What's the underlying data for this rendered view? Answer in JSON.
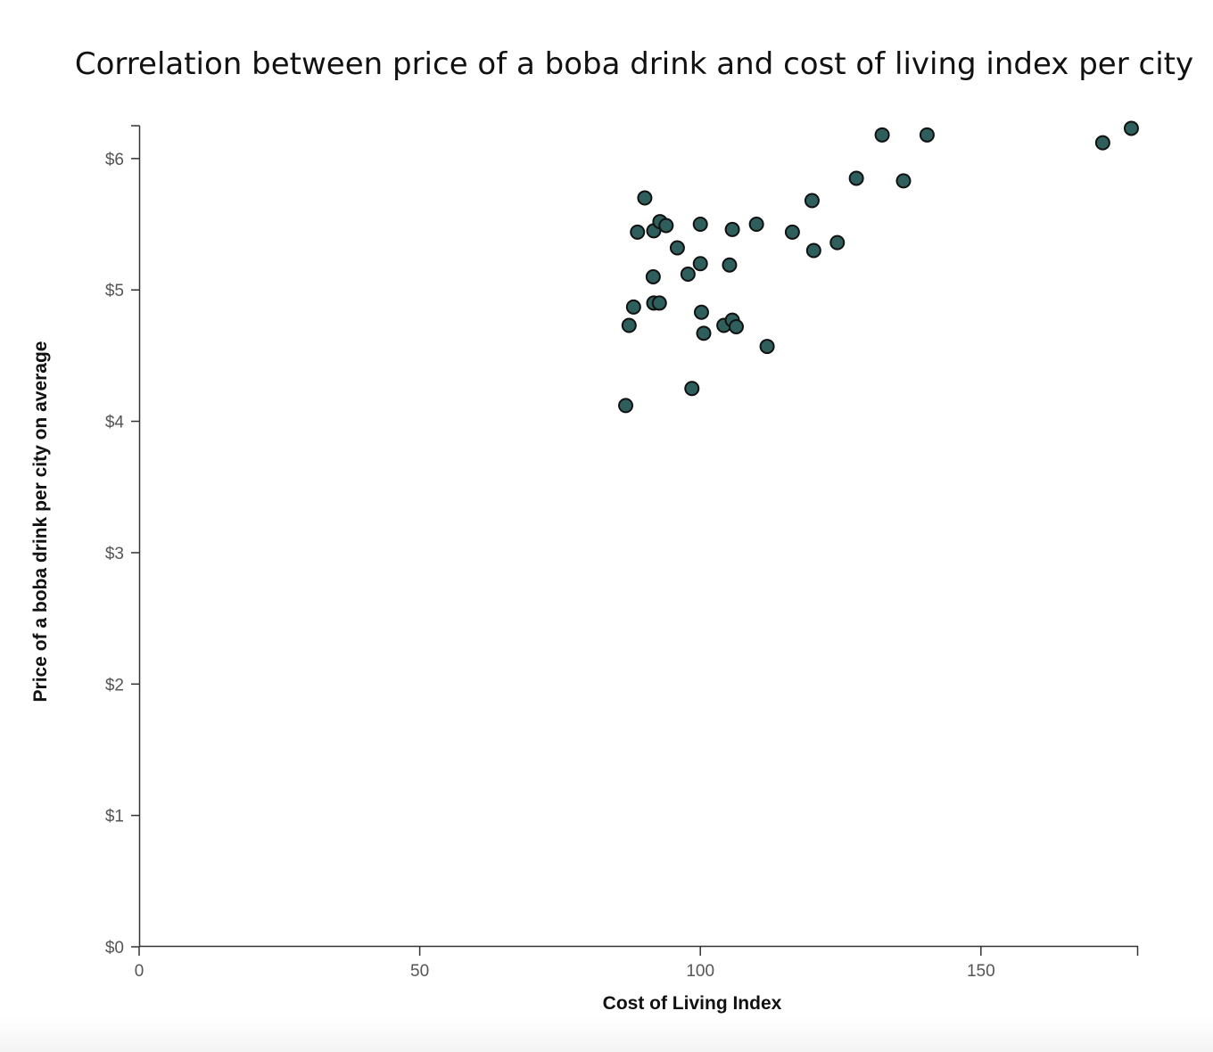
{
  "chart_data": {
    "type": "scatter",
    "title": "Correlation between price of a boba drink and cost of living index per city",
    "xlabel": "Cost of Living Index",
    "ylabel": "Price of a boba drink per city on average",
    "xlim": [
      0,
      178
    ],
    "ylim": [
      0,
      6.25
    ],
    "x_ticks": [
      0,
      50,
      100,
      150
    ],
    "x_tick_labels": [
      "0",
      "50",
      "100",
      "150"
    ],
    "y_ticks": [
      0,
      1,
      2,
      3,
      4,
      5,
      6
    ],
    "y_tick_labels": [
      "$0",
      "$1",
      "$2",
      "$3",
      "$4",
      "$5",
      "$6"
    ],
    "grid": false,
    "legend": "none",
    "marker_color": "#2f5f5c",
    "marker_edge_color": "#111111",
    "points": [
      {
        "x": 86.7,
        "y": 4.12
      },
      {
        "x": 87.3,
        "y": 4.73
      },
      {
        "x": 88.1,
        "y": 4.87
      },
      {
        "x": 88.8,
        "y": 5.44
      },
      {
        "x": 90.1,
        "y": 5.7
      },
      {
        "x": 91.6,
        "y": 5.1
      },
      {
        "x": 91.7,
        "y": 4.9
      },
      {
        "x": 91.7,
        "y": 5.45
      },
      {
        "x": 92.7,
        "y": 4.9
      },
      {
        "x": 92.8,
        "y": 5.52
      },
      {
        "x": 93.9,
        "y": 5.49
      },
      {
        "x": 95.9,
        "y": 5.32
      },
      {
        "x": 97.8,
        "y": 5.12
      },
      {
        "x": 98.5,
        "y": 4.25
      },
      {
        "x": 100.0,
        "y": 5.5
      },
      {
        "x": 100.0,
        "y": 5.2
      },
      {
        "x": 100.2,
        "y": 4.83
      },
      {
        "x": 100.6,
        "y": 4.67
      },
      {
        "x": 104.2,
        "y": 4.73
      },
      {
        "x": 105.2,
        "y": 5.19
      },
      {
        "x": 105.7,
        "y": 5.46
      },
      {
        "x": 105.7,
        "y": 4.77
      },
      {
        "x": 106.4,
        "y": 4.72
      },
      {
        "x": 110.0,
        "y": 5.5
      },
      {
        "x": 111.9,
        "y": 4.57
      },
      {
        "x": 116.4,
        "y": 5.44
      },
      {
        "x": 119.9,
        "y": 5.68
      },
      {
        "x": 120.2,
        "y": 5.3
      },
      {
        "x": 124.4,
        "y": 5.36
      },
      {
        "x": 127.8,
        "y": 5.85
      },
      {
        "x": 132.4,
        "y": 6.18
      },
      {
        "x": 136.2,
        "y": 5.83
      },
      {
        "x": 140.4,
        "y": 6.18
      },
      {
        "x": 171.7,
        "y": 6.12
      },
      {
        "x": 176.8,
        "y": 6.23
      }
    ]
  }
}
